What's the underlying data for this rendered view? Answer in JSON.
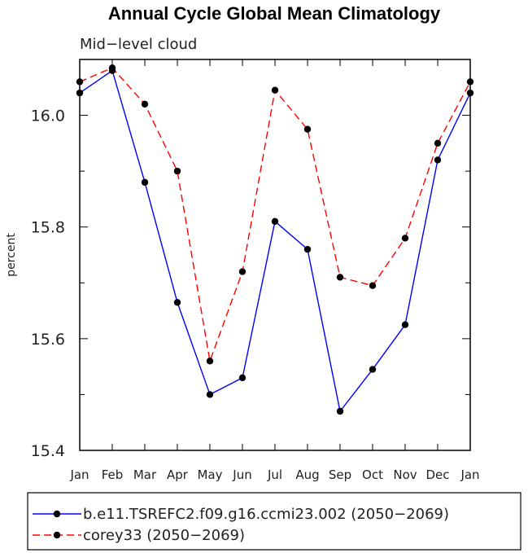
{
  "chart_data": {
    "type": "line",
    "title": "Annual Cycle Global Mean Climatology",
    "subtitle": "Mid−level cloud",
    "xlabel": "",
    "ylabel": "percent",
    "categories": [
      "Jan",
      "Feb",
      "Mar",
      "Apr",
      "May",
      "Jun",
      "Jul",
      "Aug",
      "Sep",
      "Oct",
      "Nov",
      "Dec",
      "Jan"
    ],
    "ylim": [
      15.4,
      16.1
    ],
    "yticks_labeled": [
      "15.4",
      "15.6",
      "15.8",
      "16.0"
    ],
    "grid": false,
    "legend_position": "bottom",
    "series": [
      {
        "name": "b.e11.TSREFC2.f09.g16.ccmi23.002 (2050−2069)",
        "color": "#0000ff",
        "dash": "solid",
        "marker": "filled-circle",
        "values": [
          16.04,
          16.08,
          15.88,
          15.665,
          15.5,
          15.53,
          15.81,
          15.76,
          15.47,
          15.545,
          15.625,
          15.92,
          16.04
        ]
      },
      {
        "name": "corey33 (2050−2069)",
        "color": "#ff0000",
        "dash": "dashed",
        "marker": "filled-circle",
        "values": [
          16.06,
          16.085,
          16.02,
          15.9,
          15.56,
          15.72,
          16.045,
          15.975,
          15.71,
          15.695,
          15.78,
          15.95,
          16.06
        ]
      }
    ]
  }
}
